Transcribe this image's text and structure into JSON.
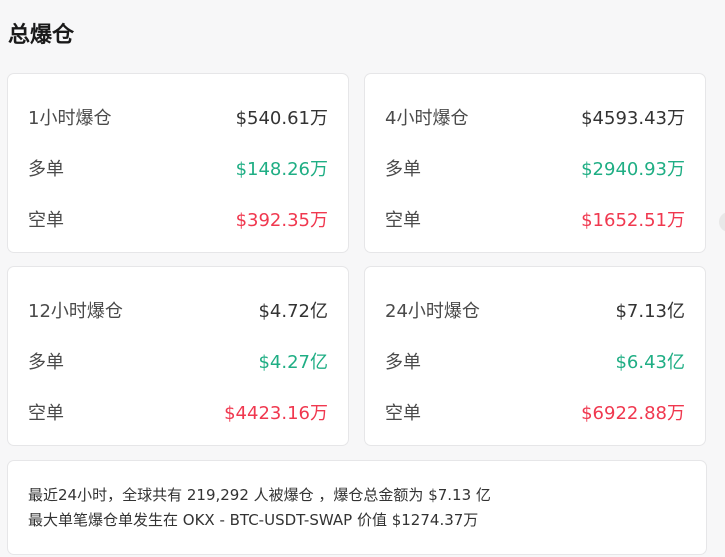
{
  "title": "总爆仓",
  "long_label": "多单",
  "short_label": "空单",
  "colors": {
    "long": "#1fae84",
    "short": "#f0384f"
  },
  "cards": [
    {
      "label": "1小时爆仓",
      "total": "$540.61万",
      "long": "$148.26万",
      "short": "$392.35万"
    },
    {
      "label": "4小时爆仓",
      "total": "$4593.43万",
      "long": "$2940.93万",
      "short": "$1652.51万"
    },
    {
      "label": "12小时爆仓",
      "total": "$4.72亿",
      "long": "$4.27亿",
      "short": "$4423.16万"
    },
    {
      "label": "24小时爆仓",
      "total": "$7.13亿",
      "long": "$6.43亿",
      "short": "$6922.88万"
    }
  ],
  "summary": {
    "line1": "最近24小时，全球共有 219,292 人被爆仓 ，爆仓总金额为 $7.13 亿",
    "line2": "最大单笔爆仓单发生在 OKX - BTC-USDT-SWAP 价值 $1274.37万"
  }
}
